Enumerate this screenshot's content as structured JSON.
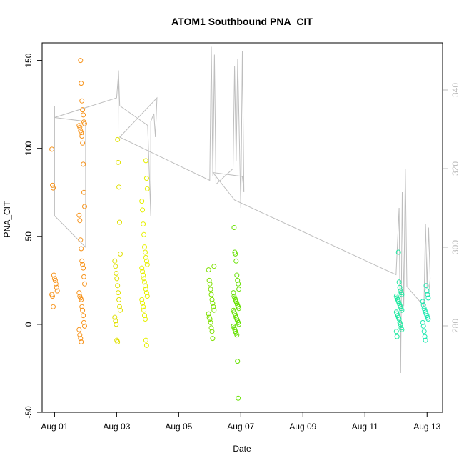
{
  "chart_data": {
    "type": "scatter",
    "title": "ATOM1 Southbound PNA_CIT",
    "xlabel": "Date",
    "ylabel": "PNA_CIT",
    "ylim": [
      -50,
      160
    ],
    "y2lim": [
      258,
      352
    ],
    "xlim_days": [
      -0.4,
      12.5
    ],
    "x_tick_labels": [
      "Aug 01",
      "Aug 03",
      "Aug 05",
      "Aug 07",
      "Aug 09",
      "Aug 11",
      "Aug 13"
    ],
    "x_tick_days": [
      0,
      2,
      4,
      6,
      8,
      10,
      12
    ],
    "y_ticks": [
      -50,
      0,
      50,
      100,
      150
    ],
    "y2_ticks": [
      280,
      300,
      320,
      340
    ],
    "colors": {
      "aug01": "#f7941d",
      "aug02": "#f7941d",
      "aug03": "#e0e000",
      "aug04": "#e6f000",
      "aug06": "#7ee000",
      "aug07": "#66e000",
      "aug12": "#1ee8a0",
      "aug13": "#1ee8b0",
      "secondary": "#bebebe"
    },
    "point_groups": [
      {
        "day": 0.0,
        "color_key": "aug01",
        "values": [
          99.5,
          79,
          77.5,
          28,
          26,
          25,
          23,
          21,
          19,
          17,
          16,
          10
        ]
      },
      {
        "day": 0.88,
        "color_key": "aug02",
        "values": [
          150,
          137,
          127,
          122,
          119,
          115,
          114,
          113,
          112,
          110,
          109,
          107,
          103,
          91,
          75,
          67,
          62,
          59,
          48,
          43,
          36,
          34,
          32,
          27,
          23,
          18,
          16,
          15,
          14,
          10,
          8,
          5,
          1,
          -1,
          -3,
          -6,
          -8,
          -10
        ]
      },
      {
        "day": 2.03,
        "color_key": "aug03",
        "values": [
          105,
          92,
          78,
          58,
          40,
          36,
          33,
          29,
          26,
          22,
          18,
          14,
          10,
          8,
          4,
          2,
          0,
          -9,
          -10
        ]
      },
      {
        "day": 2.9,
        "color_key": "aug04",
        "values": [
          93,
          83,
          77,
          70,
          65,
          57,
          51,
          44,
          41,
          38,
          36,
          34,
          32,
          30,
          28,
          26,
          24,
          22,
          20,
          18,
          16,
          14,
          12,
          10,
          8,
          5,
          3,
          -9,
          -12
        ]
      },
      {
        "day": 5.05,
        "color_key": "aug06",
        "values": [
          33,
          31,
          25,
          23,
          20,
          17,
          14,
          12,
          10,
          8,
          6,
          4,
          3,
          1,
          -2,
          -4,
          -8
        ]
      },
      {
        "day": 5.85,
        "color_key": "aug07",
        "values": [
          55,
          41,
          40,
          36,
          28,
          25,
          23,
          20,
          18,
          16,
          15,
          14,
          13,
          12,
          11,
          10,
          9,
          8,
          7,
          6,
          5,
          4,
          3,
          2,
          1,
          0,
          -1,
          -2,
          -3,
          -4,
          -5,
          -6,
          -21,
          -42
        ]
      },
      {
        "day": 11.1,
        "color_key": "aug12",
        "values": [
          41,
          24,
          21,
          19,
          18,
          17,
          16,
          15,
          14,
          13,
          12,
          11,
          10,
          9,
          8,
          7,
          6,
          5,
          4,
          3,
          1,
          0,
          -2,
          -3,
          -4,
          -7
        ]
      },
      {
        "day": 11.95,
        "color_key": "aug13",
        "values": [
          22,
          19,
          17,
          15,
          13,
          11,
          9,
          8,
          7,
          6,
          5,
          4,
          3,
          1,
          -1,
          -4,
          -7,
          -9
        ]
      }
    ],
    "secondary_line": {
      "name": "secondary series (right axis)",
      "points": [
        [
          0.0,
          336
        ],
        [
          0.0,
          308
        ],
        [
          1.0,
          300
        ],
        [
          1.0,
          332
        ],
        [
          0.0,
          333
        ],
        [
          2.0,
          338
        ],
        [
          2.05,
          343
        ],
        [
          2.05,
          329
        ],
        [
          2.06,
          345
        ],
        [
          2.1,
          336
        ],
        [
          3.0,
          331
        ],
        [
          3.1,
          308
        ],
        [
          3.1,
          332
        ],
        [
          3.2,
          334
        ],
        [
          3.25,
          328
        ],
        [
          3.3,
          338
        ],
        [
          2.1,
          328
        ],
        [
          5.0,
          317
        ],
        [
          5.05,
          351
        ],
        [
          5.1,
          318
        ],
        [
          5.15,
          349
        ],
        [
          5.2,
          316
        ],
        [
          5.75,
          320
        ],
        [
          5.8,
          346
        ],
        [
          5.85,
          322
        ],
        [
          5.9,
          348
        ],
        [
          6.0,
          310
        ],
        [
          6.05,
          350
        ],
        [
          6.1,
          314
        ],
        [
          6.05,
          318
        ],
        [
          5.1,
          319
        ],
        [
          5.8,
          312
        ],
        [
          11.0,
          293
        ],
        [
          11.1,
          310
        ],
        [
          11.15,
          268
        ],
        [
          11.2,
          314
        ],
        [
          11.25,
          285
        ],
        [
          11.3,
          320
        ],
        [
          11.35,
          290
        ],
        [
          11.9,
          285
        ],
        [
          11.95,
          306
        ],
        [
          12.0,
          290
        ],
        [
          12.05,
          305
        ],
        [
          12.1,
          292
        ],
        [
          12.05,
          288
        ]
      ]
    }
  }
}
